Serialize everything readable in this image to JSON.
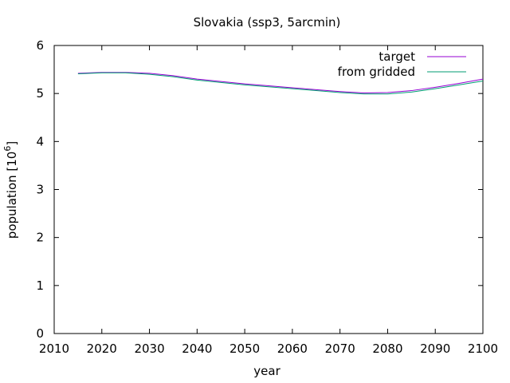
{
  "chart_data": {
    "type": "line",
    "title": "Slovakia (ssp3, 5arcmin)",
    "xlabel": "year",
    "ylabel_main": "population [10",
    "ylabel_sup": "6",
    "ylabel_end": "]",
    "xlim": [
      2010,
      2100
    ],
    "ylim": [
      0,
      6
    ],
    "x_ticks": [
      "2010",
      "2020",
      "2030",
      "2040",
      "2050",
      "2060",
      "2070",
      "2080",
      "2090",
      "2100"
    ],
    "y_ticks": [
      "0",
      "1",
      "2",
      "3",
      "4",
      "5",
      "6"
    ],
    "grid": false,
    "legend_position": "top-right",
    "series": [
      {
        "name": "target",
        "color": "#9400d3",
        "x": [
          2015,
          2020,
          2025,
          2030,
          2035,
          2040,
          2045,
          2050,
          2055,
          2060,
          2065,
          2070,
          2075,
          2080,
          2085,
          2090,
          2095,
          2100
        ],
        "y": [
          5.42,
          5.44,
          5.44,
          5.42,
          5.37,
          5.3,
          5.25,
          5.2,
          5.16,
          5.12,
          5.08,
          5.04,
          5.01,
          5.02,
          5.06,
          5.13,
          5.21,
          5.3
        ]
      },
      {
        "name": "from gridded",
        "color": "#009e73",
        "x": [
          2015,
          2020,
          2025,
          2030,
          2035,
          2040,
          2045,
          2050,
          2055,
          2060,
          2065,
          2070,
          2075,
          2080,
          2085,
          2090,
          2095,
          2100
        ],
        "y": [
          5.41,
          5.43,
          5.43,
          5.4,
          5.35,
          5.28,
          5.23,
          5.18,
          5.14,
          5.1,
          5.06,
          5.02,
          4.99,
          4.99,
          5.03,
          5.1,
          5.18,
          5.26
        ]
      }
    ]
  }
}
